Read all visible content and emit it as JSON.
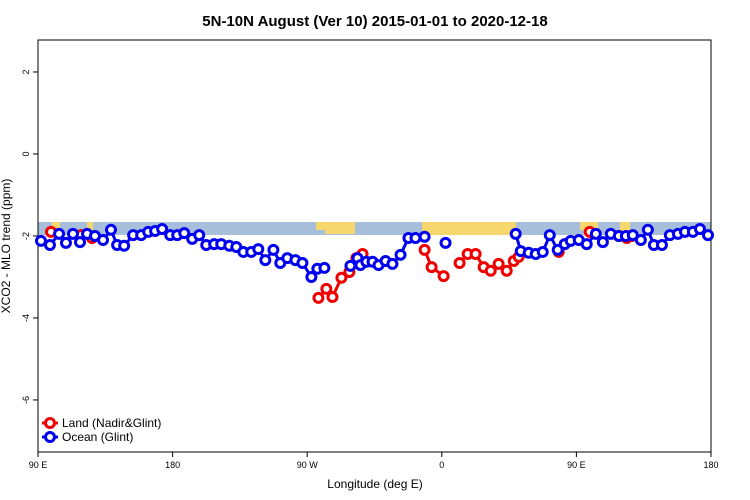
{
  "chart_data": {
    "type": "line",
    "title": "5N-10N August (Ver 10)   2015-01-01 to 2020-12-18",
    "x_label": "Longitude (deg E)",
    "y_label": "XCO2 - MLO trend (ppm)",
    "xlim": [
      90,
      540
    ],
    "ylim": [
      -7.27,
      2.78
    ],
    "xticks": [
      {
        "value": 90,
        "label": "90 E"
      },
      180,
      {
        "value": 270,
        "label": "90 W"
      },
      {
        "value": 360,
        "label": "0"
      },
      {
        "value": 450,
        "label": "90 E"
      },
      {
        "value": 540,
        "label": "180"
      }
    ],
    "yticks": [
      2,
      0,
      -2,
      -4,
      -6
    ],
    "legend": "bottom-left",
    "series": [
      {
        "name": "Land (Nadir&Glint)",
        "color": "#ee0000",
        "x": [
          98.7,
          101,
          118.8,
          122,
          126.2,
          200,
          277.5,
          282.8,
          286.9,
          292.9,
          298.2,
          302.9,
          307.0,
          330,
          348.5,
          353.2,
          361.2,
          365,
          371.9,
          377.3,
          382.6,
          388.0,
          392.7,
          398.0,
          403.4,
          408.1,
          411.4,
          420,
          438.2,
          450,
          458.9,
          470,
          478.4,
          483.7,
          487.1
        ],
        "values": [
          -1.9,
          null,
          -1.98,
          null,
          -2.05,
          null,
          -3.51,
          -3.29,
          -3.49,
          -3.02,
          -2.88,
          -2.54,
          -2.44,
          null,
          -2.34,
          -2.76,
          -2.98,
          null,
          -2.66,
          -2.44,
          -2.44,
          -2.76,
          -2.85,
          -2.68,
          -2.85,
          -2.61,
          -2.51,
          null,
          -2.39,
          null,
          -1.9,
          null,
          -2.0,
          -2.05,
          -2.0
        ]
      },
      {
        "name": "Ocean (Glint)",
        "color": "#0000ee",
        "x": [
          92.0,
          98.0,
          104.1,
          108.7,
          113.4,
          118.1,
          122.8,
          128.1,
          133.5,
          138.8,
          142.9,
          147.6,
          153.6,
          159.0,
          163.7,
          168.3,
          173.0,
          178.4,
          183.1,
          187.8,
          193.1,
          197.8,
          202.5,
          207.8,
          212.5,
          217.9,
          222.6,
          227.3,
          232.6,
          237.3,
          242.0,
          247.4,
          252.0,
          256.7,
          262.1,
          266.8,
          272.8,
          276.8,
          281.5,
          290,
          298.9,
          303.6,
          305.6,
          309.6,
          313.7,
          317.7,
          322.4,
          327.0,
          332.4,
          337.7,
          342.4,
          348.5,
          355,
          362.5,
          385,
          409.4,
          412.8,
          418.1,
          422.8,
          427.5,
          432.2,
          437.5,
          442.2,
          446.2,
          451.6,
          456.9,
          463.0,
          467.7,
          473.0,
          478.4,
          483.1,
          487.7,
          493.1,
          497.8,
          501.8,
          507.2,
          512.5,
          517.9,
          522.6,
          527.9,
          532.6,
          538.0
        ],
        "values": [
          -2.12,
          -2.22,
          -1.95,
          -2.17,
          -1.95,
          -2.15,
          -1.95,
          -2.0,
          -2.1,
          -1.85,
          -2.22,
          -2.24,
          -1.98,
          -1.98,
          -1.9,
          -1.88,
          -1.83,
          -1.98,
          -1.98,
          -1.93,
          -2.07,
          -1.98,
          -2.22,
          -2.2,
          -2.2,
          -2.24,
          -2.27,
          -2.39,
          -2.39,
          -2.32,
          -2.59,
          -2.34,
          -2.66,
          -2.54,
          -2.59,
          -2.66,
          -3.0,
          -2.8,
          -2.78,
          null,
          -2.73,
          -2.54,
          -2.71,
          -2.63,
          -2.63,
          -2.71,
          -2.61,
          -2.68,
          -2.46,
          -2.05,
          -2.05,
          -2.02,
          null,
          -2.17,
          null,
          -1.95,
          -2.37,
          -2.41,
          -2.44,
          -2.39,
          -1.98,
          -2.34,
          -2.2,
          -2.12,
          -2.1,
          -2.2,
          -1.95,
          -2.15,
          -1.95,
          -2.0,
          -2.0,
          -1.98,
          -2.1,
          -1.85,
          -2.22,
          -2.22,
          -1.98,
          -1.95,
          -1.9,
          -1.9,
          -1.83,
          -1.98
        ]
      }
    ]
  }
}
